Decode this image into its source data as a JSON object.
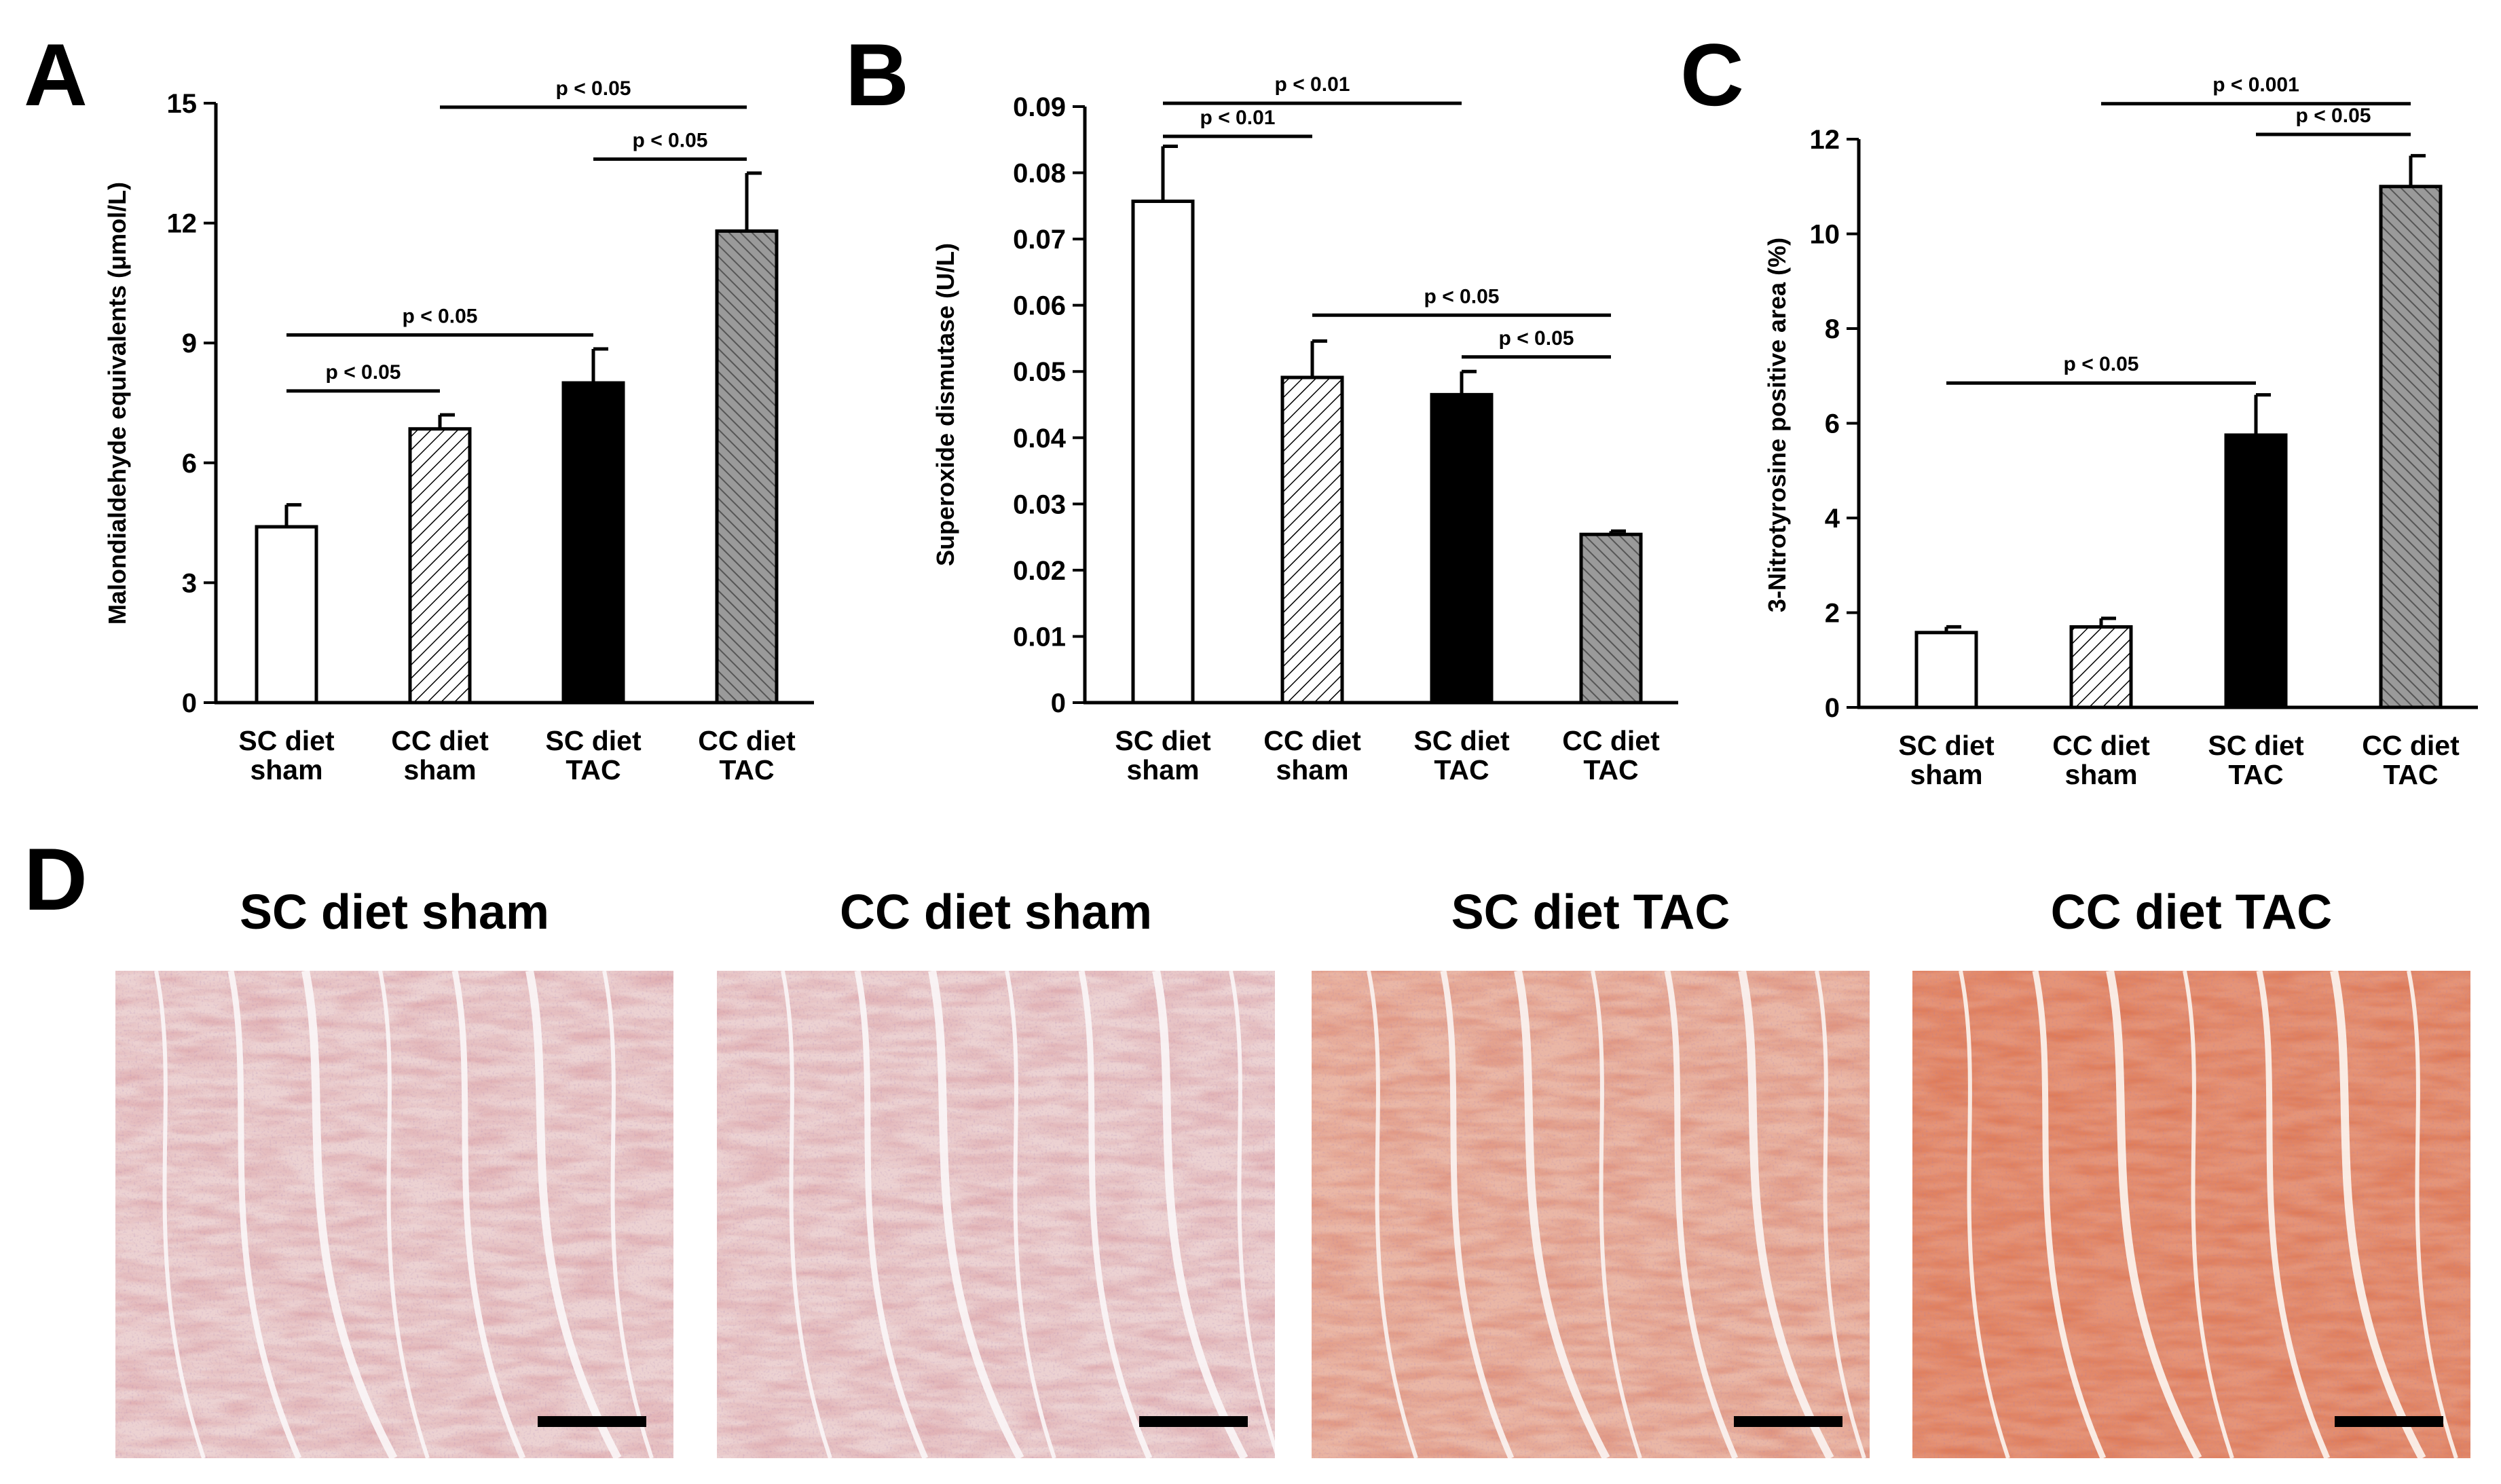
{
  "panels": {
    "a": "A",
    "b": "B",
    "c": "C",
    "d": "D"
  },
  "colors": {
    "sc_sham": "#ffffff",
    "cc_sham": "#ffffff",
    "sc_tac": "#000000",
    "cc_tac": "#8c8c8c",
    "tissue_light": "#e9c9c7",
    "tissue_red": "#dd7a57",
    "scale_bar": "#000000"
  },
  "chart_data": [
    {
      "type": "bar",
      "panel": "A",
      "categories": [
        [
          "SC diet",
          "sham"
        ],
        [
          "CC diet",
          "sham"
        ],
        [
          "SC diet",
          "TAC"
        ],
        [
          "CC diet",
          "TAC"
        ]
      ],
      "values": [
        4.4,
        6.85,
        8.0,
        11.8
      ],
      "errors": [
        0.55,
        0.35,
        0.85,
        1.45
      ],
      "fills": [
        "solid-white",
        "hatch-right",
        "solid-black",
        "hatch-left-grey"
      ],
      "ylabel": "Malondialdehyde equivalents (μmol/L)",
      "ylim": [
        0,
        15
      ],
      "yticks": [
        0,
        3,
        6,
        9,
        12,
        15
      ],
      "ytick_labels": [
        "0",
        "3",
        "6",
        "9",
        "12",
        "15"
      ],
      "significance": [
        {
          "from": 0,
          "to": 1,
          "label": "p < 0.05",
          "y": 7.8
        },
        {
          "from": 0,
          "to": 2,
          "label": "p < 0.05",
          "y": 9.2
        },
        {
          "from": 2,
          "to": 3,
          "label": "p < 0.05",
          "y": 13.6
        },
        {
          "from": 1,
          "to": 3,
          "label": "p < 0.05",
          "y": 14.9
        }
      ]
    },
    {
      "type": "bar",
      "panel": "B",
      "categories": [
        [
          "SC diet",
          "sham"
        ],
        [
          "CC diet",
          "sham"
        ],
        [
          "SC diet",
          "TAC"
        ],
        [
          "CC diet",
          "TAC"
        ]
      ],
      "values": [
        0.0757,
        0.0491,
        0.0465,
        0.0254
      ],
      "errors": [
        0.0083,
        0.0055,
        0.0035,
        0.0005
      ],
      "fills": [
        "solid-white",
        "hatch-right",
        "solid-black",
        "hatch-left-grey"
      ],
      "ylabel": "Superoxide dismutase (U/L)",
      "ylim": [
        0,
        0.09
      ],
      "yticks": [
        0,
        0.01,
        0.02,
        0.03,
        0.04,
        0.05,
        0.06,
        0.07,
        0.08,
        0.09
      ],
      "ytick_labels": [
        "0",
        "0.01",
        "0.02",
        "0.03",
        "0.04",
        "0.05",
        "0.06",
        "0.07",
        "0.08",
        "0.09"
      ],
      "significance": [
        {
          "from": 0,
          "to": 1,
          "label": "p < 0.01",
          "y": 0.0855
        },
        {
          "from": 0,
          "to": 2,
          "label": "p < 0.01",
          "y": 0.0905
        },
        {
          "from": 2,
          "to": 3,
          "label": "p < 0.05",
          "y": 0.0522
        },
        {
          "from": 1,
          "to": 3,
          "label": "p < 0.05",
          "y": 0.0585
        }
      ]
    },
    {
      "type": "bar",
      "panel": "C",
      "categories": [
        [
          "SC diet",
          "sham"
        ],
        [
          "CC diet",
          "sham"
        ],
        [
          "SC diet",
          "TAC"
        ],
        [
          "CC diet",
          "TAC"
        ]
      ],
      "values": [
        1.58,
        1.7,
        5.75,
        11.0
      ],
      "errors": [
        0.12,
        0.18,
        0.85,
        0.65
      ],
      "fills": [
        "solid-white",
        "hatch-right",
        "solid-black",
        "hatch-left-grey"
      ],
      "ylabel": "3-Nitrotyrosine positive area (%)",
      "ylim": [
        0,
        12
      ],
      "yticks": [
        0,
        2,
        4,
        6,
        8,
        10,
        12
      ],
      "ytick_labels": [
        "0",
        "2",
        "4",
        "6",
        "8",
        "10",
        "12"
      ],
      "significance": [
        {
          "from": 0,
          "to": 2,
          "label": "p < 0.05",
          "y": 6.85
        },
        {
          "from": 2,
          "to": 3,
          "label": "p < 0.05",
          "y": 12.1
        },
        {
          "from": 1,
          "to": 3,
          "label": "p < 0.001",
          "y": 12.75
        }
      ]
    }
  ],
  "histology": [
    {
      "title": "SC diet sham",
      "stain": "light-pink"
    },
    {
      "title": "CC diet sham",
      "stain": "light-pink"
    },
    {
      "title": "SC diet TAC",
      "stain": "salmon"
    },
    {
      "title": "CC diet TAC",
      "stain": "deep-orange"
    }
  ]
}
